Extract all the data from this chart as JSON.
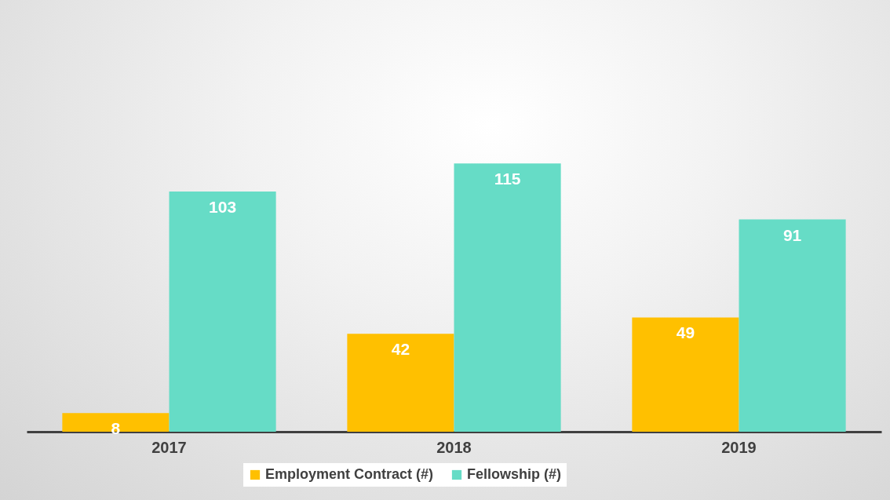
{
  "chart_data": {
    "type": "bar",
    "tick_labels": "x",
    "categories": [
      "2017",
      "2018",
      "2019"
    ],
    "series": [
      {
        "name": "Employment Contract (#)",
        "color": "#ffc000",
        "values": [
          8,
          42,
          49
        ]
      },
      {
        "name": "Fellowship (#)",
        "color": "#66dcc6",
        "values": [
          103,
          115,
          91
        ]
      }
    ],
    "data_labels": true,
    "legend": "bottom"
  }
}
